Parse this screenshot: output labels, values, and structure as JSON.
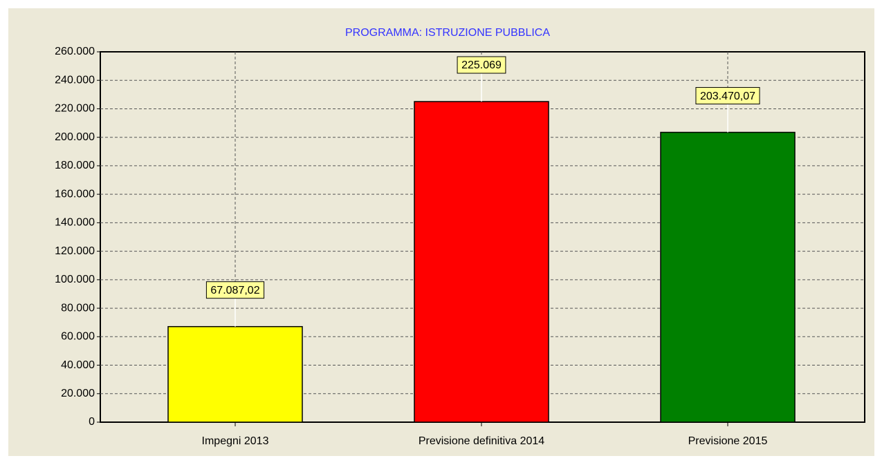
{
  "chart_data": {
    "type": "bar",
    "title": "PROGRAMMA: ISTRUZIONE PUBBLICA",
    "categories": [
      "Impegni 2013",
      "Previsione definitiva 2014",
      "Previsione 2015"
    ],
    "values": [
      67087.02,
      225069,
      203470.07
    ],
    "value_labels": [
      "67.087,02",
      "225.069",
      "203.470,07"
    ],
    "colors": [
      "#ffff00",
      "#ff0000",
      "#008000"
    ],
    "ylim": [
      0,
      260000
    ],
    "yticks": [
      0,
      {
        "value": 20000,
        "label": "20.000"
      },
      {
        "value": 40000,
        "label": "40.000"
      },
      {
        "value": 60000,
        "label": "60.000"
      },
      {
        "value": 80000,
        "label": "80.000"
      },
      {
        "value": 100000,
        "label": "100.000"
      },
      {
        "value": 120000,
        "label": "120.000"
      },
      {
        "value": 140000,
        "label": "140.000"
      },
      {
        "value": 160000,
        "label": "160.000"
      },
      {
        "value": 180000,
        "label": "180.000"
      },
      {
        "value": 200000,
        "label": "200.000"
      },
      {
        "value": 220000,
        "label": "220.000"
      },
      {
        "value": 240000,
        "label": "240.000"
      },
      {
        "value": 260000,
        "label": "260.000"
      }
    ],
    "grid": true
  }
}
